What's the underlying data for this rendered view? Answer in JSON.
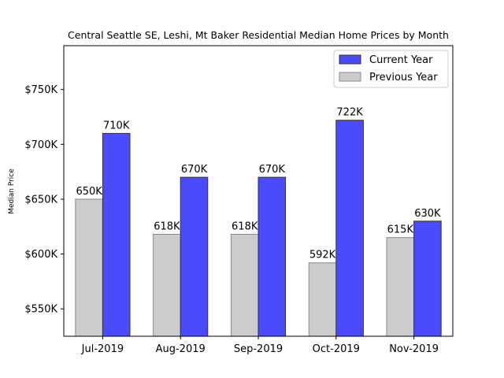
{
  "chart_data": {
    "type": "bar",
    "title": "Central Seattle SE, Leshi, Mt Baker Residential Median Home Prices by Month",
    "xlabel": "",
    "ylabel": "Median Price",
    "categories": [
      "Jul-2019",
      "Aug-2019",
      "Sep-2019",
      "Oct-2019",
      "Nov-2019"
    ],
    "series": [
      {
        "name": "Previous Year",
        "color": "#cccccc",
        "edge": "#888888",
        "values": [
          650,
          618,
          618,
          592,
          615
        ],
        "labels": [
          "650K",
          "618K",
          "618K",
          "592K",
          "615K"
        ]
      },
      {
        "name": "Current Year",
        "color": "#4a4aff",
        "edge": "#333333",
        "values": [
          710,
          670,
          670,
          722,
          630
        ],
        "labels": [
          "710K",
          "670K",
          "670K",
          "722K",
          "630K"
        ]
      }
    ],
    "ylim": [
      525,
      790
    ],
    "yticks": [
      550,
      600,
      650,
      700,
      750
    ],
    "ytick_labels": [
      "$550K",
      "$600K",
      "$650K",
      "$700K",
      "$750K"
    ],
    "legend": {
      "placement": "top-right",
      "entries": [
        "Current Year",
        "Previous Year"
      ]
    },
    "grid": false
  }
}
